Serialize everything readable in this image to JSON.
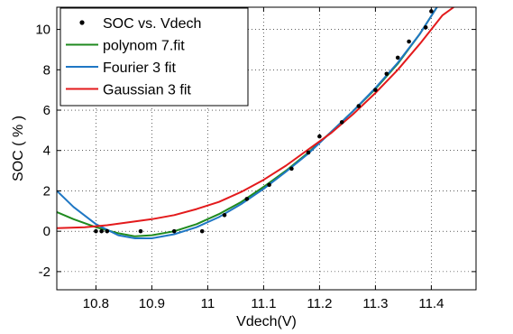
{
  "chart_data": {
    "type": "line",
    "title": "",
    "xlabel": "Vdech(V)",
    "ylabel": "SOC ( % )",
    "xlim": [
      10.73,
      11.48
    ],
    "ylim": [
      -2.9,
      11.1
    ],
    "xticks": [
      10.8,
      10.9,
      11,
      11.1,
      11.2,
      11.3,
      11.4
    ],
    "xtick_labels": [
      "10.8",
      "10.9",
      "11",
      "11.1",
      "11.2",
      "11.3",
      "11.4"
    ],
    "yticks": [
      -2,
      0,
      2,
      4,
      6,
      8,
      10
    ],
    "ytick_labels": [
      "-2",
      "0",
      "2",
      "4",
      "6",
      "8",
      "10"
    ],
    "grid": true,
    "legend_position": "top-left",
    "series": [
      {
        "name": "SOC vs. Vdech",
        "style": "points",
        "color": "#000000",
        "x": [
          10.8,
          10.81,
          10.82,
          10.88,
          10.94,
          10.99,
          11.03,
          11.07,
          11.11,
          11.15,
          11.18,
          11.2,
          11.24,
          11.27,
          11.3,
          11.32,
          11.34,
          11.36,
          11.39,
          11.4
        ],
        "y": [
          0.0,
          0.0,
          0.0,
          0.0,
          0.0,
          0.0,
          0.8,
          1.6,
          2.3,
          3.1,
          3.9,
          4.7,
          5.4,
          6.2,
          7.0,
          7.8,
          8.6,
          9.4,
          10.1,
          10.9
        ]
      },
      {
        "name": "polynom 7.fit",
        "style": "line",
        "color": "#1f8a1f",
        "x": [
          10.73,
          10.76,
          10.8,
          10.84,
          10.87,
          10.9,
          10.94,
          10.98,
          11.02,
          11.06,
          11.1,
          11.14,
          11.18,
          11.22,
          11.26,
          11.3,
          11.34,
          11.38,
          11.41
        ],
        "y": [
          0.95,
          0.6,
          0.2,
          -0.1,
          -0.25,
          -0.2,
          0.0,
          0.35,
          0.85,
          1.45,
          2.2,
          3.0,
          3.9,
          4.9,
          5.95,
          7.05,
          8.3,
          9.8,
          11.1
        ]
      },
      {
        "name": "Fourier 3 fit",
        "style": "line",
        "color": "#1f77c4",
        "x": [
          10.73,
          10.76,
          10.8,
          10.84,
          10.87,
          10.9,
          10.94,
          10.98,
          11.02,
          11.06,
          11.1,
          11.14,
          11.18,
          11.22,
          11.26,
          11.3,
          11.34,
          11.38,
          11.41
        ],
        "y": [
          2.0,
          1.2,
          0.35,
          -0.2,
          -0.35,
          -0.35,
          -0.15,
          0.2,
          0.7,
          1.35,
          2.1,
          2.95,
          3.85,
          4.9,
          5.95,
          7.1,
          8.35,
          9.8,
          11.1
        ]
      },
      {
        "name": "Gaussian 3 fit",
        "style": "line",
        "color": "#e31a1c",
        "x": [
          10.73,
          10.78,
          10.82,
          10.86,
          10.9,
          10.94,
          10.98,
          11.02,
          11.06,
          11.1,
          11.14,
          11.18,
          11.22,
          11.26,
          11.3,
          11.34,
          11.38,
          11.42,
          11.44
        ],
        "y": [
          0.15,
          0.2,
          0.3,
          0.45,
          0.6,
          0.8,
          1.1,
          1.45,
          1.95,
          2.55,
          3.25,
          4.05,
          4.85,
          5.8,
          6.85,
          8.0,
          9.3,
          10.7,
          11.1
        ]
      }
    ]
  }
}
